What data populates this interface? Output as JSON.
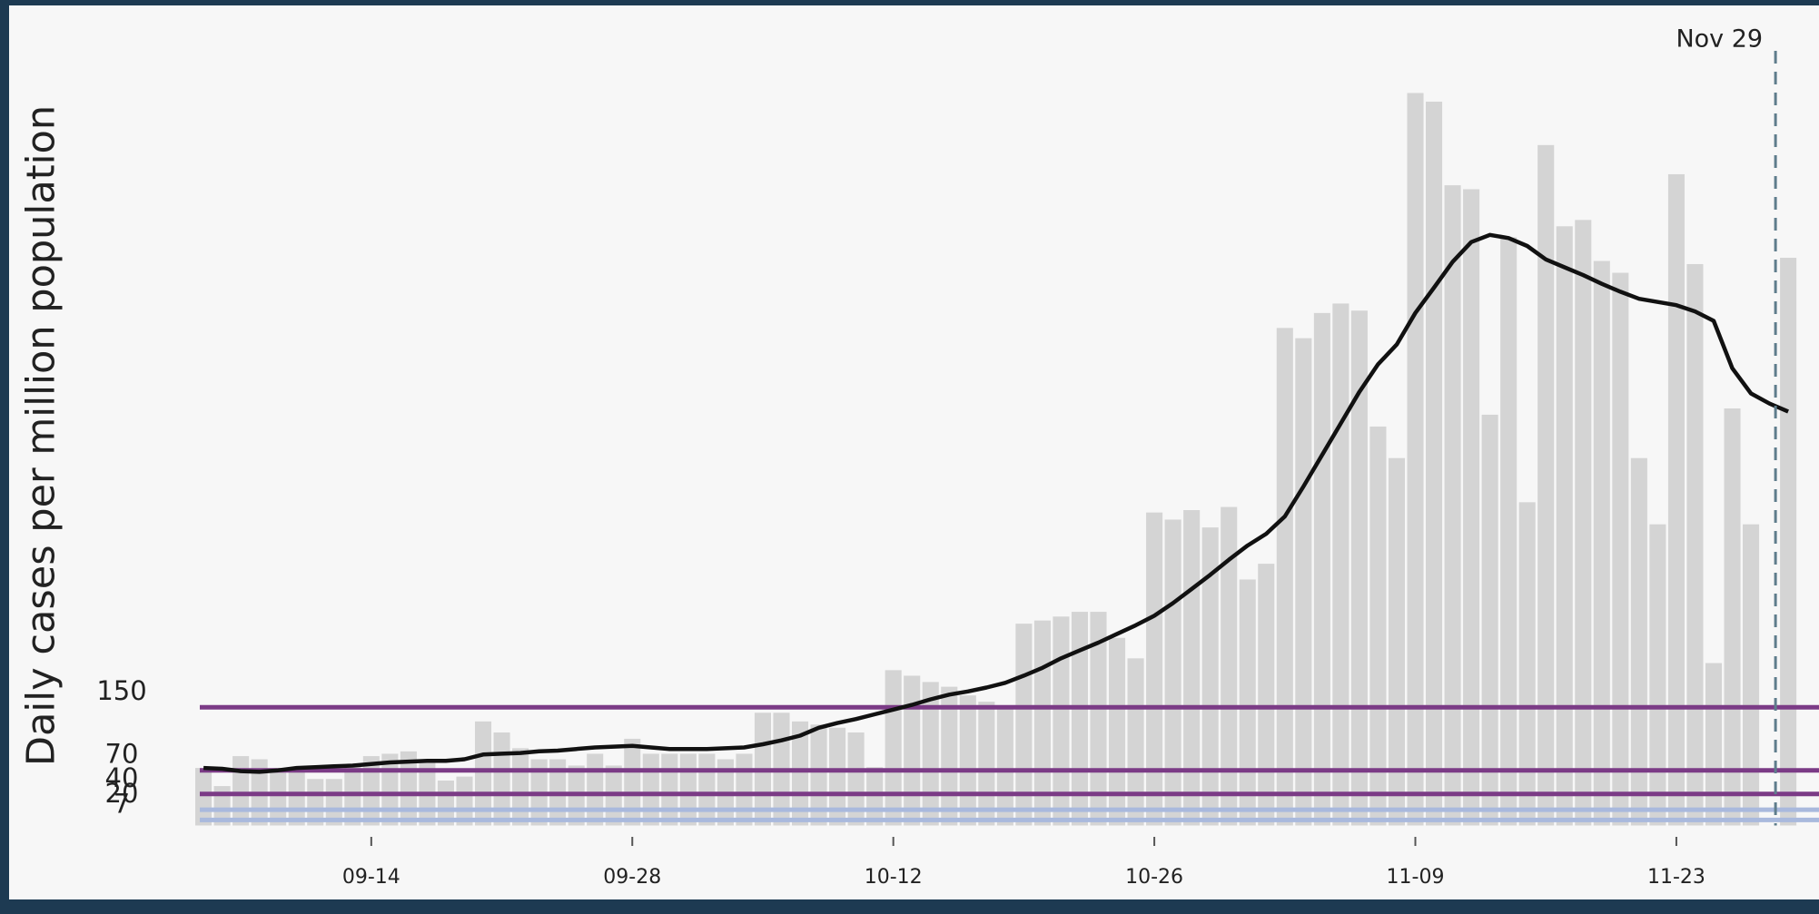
{
  "chart_data": {
    "type": "bar",
    "y_label": "Daily cases per million population",
    "annotation": "Nov 29",
    "categories": [
      null,
      null,
      null,
      null,
      null,
      null,
      null,
      null,
      null,
      "09-14",
      null,
      null,
      null,
      null,
      null,
      null,
      null,
      null,
      null,
      null,
      null,
      null,
      null,
      "09-28",
      null,
      null,
      null,
      null,
      null,
      null,
      null,
      null,
      null,
      null,
      null,
      null,
      null,
      "10-12",
      null,
      null,
      null,
      null,
      null,
      null,
      null,
      null,
      null,
      null,
      null,
      null,
      null,
      "10-26",
      null,
      null,
      null,
      null,
      null,
      null,
      null,
      null,
      null,
      null,
      null,
      null,
      null,
      "11-09",
      null,
      null,
      null,
      null,
      null,
      null,
      null,
      null,
      null,
      null,
      null,
      null,
      null,
      "11-23",
      null,
      null,
      null,
      null,
      null,
      null
    ],
    "series": [
      {
        "type": "bar",
        "color": "#d4d4d4",
        "values": [
          73,
          50,
          88,
          84,
          73,
          73,
          59,
          59,
          76,
          88,
          91,
          94,
          84,
          57,
          62,
          132,
          118,
          98,
          84,
          84,
          76,
          91,
          76,
          110,
          91,
          91,
          91,
          91,
          84,
          91,
          143,
          143,
          132,
          128,
          124,
          118,
          74,
          197,
          190,
          182,
          176,
          165,
          157,
          150,
          256,
          260,
          265,
          271,
          271,
          238,
          212,
          397,
          388,
          400,
          378,
          404,
          312,
          332,
          631,
          618,
          650,
          662,
          653,
          506,
          466,
          929,
          918,
          812,
          807,
          521,
          746,
          410,
          863,
          760,
          768,
          716,
          701,
          466,
          382,
          826,
          712,
          206,
          529,
          382,
          null,
          720
        ]
      },
      {
        "type": "line",
        "color": "#111111",
        "values": [
          73,
          72,
          69,
          68,
          70,
          73,
          74,
          75,
          76,
          78,
          80,
          81,
          82,
          82,
          84,
          90,
          91,
          92,
          94,
          95,
          97,
          99,
          100,
          101,
          99,
          97,
          97,
          97,
          98,
          99,
          103,
          108,
          114,
          124,
          130,
          135,
          141,
          147,
          153,
          160,
          166,
          170,
          175,
          181,
          190,
          200,
          212,
          222,
          232,
          243,
          254,
          266,
          282,
          300,
          318,
          337,
          355,
          370,
          392,
          430,
          470,
          510,
          550,
          585,
          610,
          650,
          682,
          715,
          740,
          749,
          745,
          735,
          718,
          708,
          698,
          687,
          677,
          668,
          664,
          660,
          652,
          640,
          580,
          548,
          535,
          525
        ]
      }
    ],
    "ylim": [
      0,
      1000
    ],
    "yticks": [
      7,
      20,
      40,
      70,
      150
    ],
    "ytick_colors": [
      "#a9b9dd",
      "#a9b9dd",
      "#7b3b86",
      "#7b3b86",
      "#7b3b86"
    ],
    "marker_color": "#5f7d8c"
  }
}
